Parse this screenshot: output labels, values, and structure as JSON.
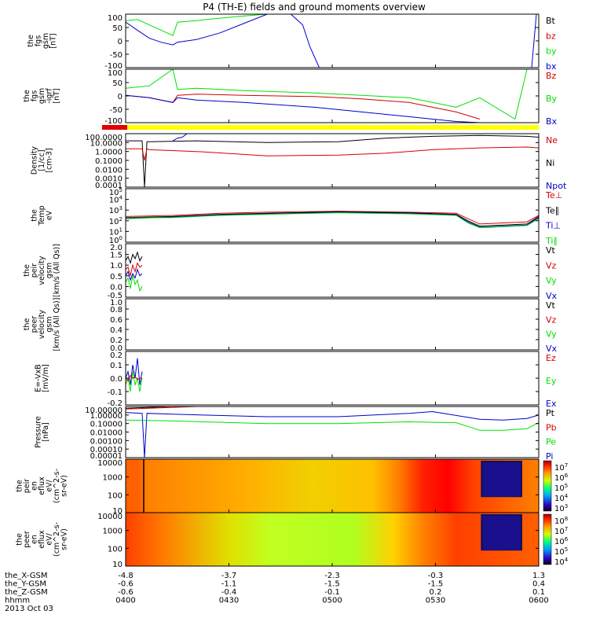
{
  "title": "P4 (TH-E) fields and ground moments overview",
  "colors": {
    "black": "#000000",
    "red": "#d40000",
    "green": "#00e000",
    "blue": "#0000c8",
    "bar_red": "#e00000",
    "bar_yellow": "#ffff00"
  },
  "chart_data": [
    {
      "type": "line",
      "id": "fgs",
      "ylabel": [
        "the",
        "fgs",
        "gsm",
        "[nT]"
      ],
      "yticks": [
        "100",
        "50",
        "0",
        "-50",
        "-100"
      ],
      "ylim": [
        -100,
        100
      ],
      "legend": [
        {
          "label": "Bt",
          "color": "black"
        },
        {
          "label": "bz",
          "color": "red"
        },
        {
          "label": "by",
          "color": "green"
        },
        {
          "label": "bx",
          "color": "blue"
        }
      ],
      "series": [
        {
          "name": "by",
          "color": "green",
          "x": [
            0,
            5,
            10,
            15,
            20,
            22,
            25,
            30,
            40,
            50,
            60,
            70,
            75
          ],
          "y": [
            75,
            80,
            60,
            40,
            20,
            70,
            72,
            76,
            85,
            93,
            100,
            100,
            100
          ]
        },
        {
          "name": "bx",
          "color": "blue",
          "x": [
            0,
            5,
            10,
            15,
            20,
            22,
            30,
            40,
            50,
            60,
            65,
            70,
            75,
            78,
            82,
            88
          ],
          "y": [
            70,
            40,
            10,
            -5,
            -15,
            -5,
            5,
            30,
            65,
            100,
            100,
            100,
            60,
            -20,
            -100,
            -100
          ]
        },
        {
          "name": "bx",
          "color": "blue",
          "x": [
            172,
            174
          ],
          "y": [
            -100,
            100
          ]
        }
      ]
    },
    {
      "type": "line",
      "id": "fgs-sm",
      "ylabel": [
        "the",
        "fgs",
        "gsm",
        "-igrf",
        "[nT]"
      ],
      "yticks": [
        "100",
        "50",
        "0",
        "-50",
        "-100"
      ],
      "ylim": [
        -125,
        100
      ],
      "legend": [
        {
          "label": "Bz",
          "color": "red"
        },
        {
          "label": "By",
          "color": "green"
        },
        {
          "label": "Bx",
          "color": "blue"
        }
      ],
      "series": [
        {
          "name": "By",
          "color": "green",
          "x": [
            0,
            10,
            20,
            22,
            30,
            50,
            80,
            100,
            120,
            130,
            140,
            150,
            160,
            165,
            170,
            175
          ],
          "y": [
            20,
            30,
            100,
            15,
            20,
            10,
            0,
            -10,
            -20,
            -40,
            -60,
            -20,
            -80,
            -110,
            100,
            120
          ]
        },
        {
          "name": "Bz",
          "color": "red",
          "x": [
            0,
            10,
            20,
            22,
            30,
            50,
            80,
            100,
            120,
            130,
            140,
            150
          ],
          "y": [
            -10,
            -20,
            -40,
            -10,
            -5,
            -10,
            -15,
            -25,
            -40,
            -60,
            -80,
            -110
          ]
        },
        {
          "name": "Bx",
          "color": "blue",
          "x": [
            0,
            10,
            20,
            22,
            30,
            50,
            80,
            100,
            120,
            130,
            140,
            150,
            155
          ],
          "y": [
            -10,
            -20,
            -40,
            -20,
            -30,
            -40,
            -60,
            -80,
            -100,
            -110,
            -120,
            -125,
            -125
          ]
        }
      ]
    },
    {
      "type": "line",
      "id": "density",
      "ylabel": [
        "Density",
        "[1/cc]",
        "[cm-3]"
      ],
      "yticks": [
        "100.0000",
        "10.0000",
        "1.0000",
        "0.1000",
        "0.0100",
        "0.0010",
        "0.0001"
      ],
      "ylim": [
        -4,
        2
      ],
      "ylog": true,
      "legend": [
        {
          "label": "Ne",
          "color": "red"
        },
        {
          "label": "Ni",
          "color": "black"
        },
        {
          "label": "Npot",
          "color": "blue"
        }
      ],
      "series": [
        {
          "name": "Ni",
          "color": "black",
          "x": [
            0,
            7,
            8,
            9,
            10,
            30,
            60,
            90,
            110,
            130,
            150,
            170,
            175
          ],
          "y": [
            1.2,
            1.2,
            -4,
            1.1,
            1.1,
            1.2,
            1.0,
            1.1,
            1.5,
            1.7,
            1.8,
            1.7,
            1.6
          ]
        },
        {
          "name": "Ne",
          "color": "red",
          "x": [
            0,
            7,
            8,
            9,
            10,
            30,
            60,
            90,
            110,
            130,
            150,
            170,
            175
          ],
          "y": [
            0.3,
            0.3,
            -1,
            0.3,
            0.2,
            0,
            -0.5,
            -0.4,
            -0.2,
            0.2,
            0.4,
            0.5,
            0.4
          ]
        },
        {
          "name": "Npot",
          "color": "blue",
          "x": [
            20,
            22,
            24,
            26,
            30,
            34
          ],
          "y": [
            1.2,
            1.5,
            1.6,
            2,
            2,
            2
          ]
        }
      ]
    },
    {
      "type": "line",
      "id": "temperature",
      "ylabel": [
        "the",
        "Temp",
        "eV"
      ],
      "yticks": [
        "10^5",
        "10^4",
        "10^3",
        "10^2",
        "10^1",
        "10^0"
      ],
      "ylim": [
        0,
        5
      ],
      "ylog": true,
      "legend": [
        {
          "label": "Te⊥",
          "color": "red"
        },
        {
          "label": "Te∥",
          "color": "black"
        },
        {
          "label": "Ti⊥",
          "color": "blue"
        },
        {
          "label": "Ti∥",
          "color": "green"
        }
      ],
      "series": [
        {
          "name": "Te⊥",
          "color": "red",
          "x": [
            0,
            20,
            40,
            60,
            90,
            120,
            140,
            145,
            150,
            160,
            170,
            175
          ],
          "y": [
            2.4,
            2.5,
            2.7,
            2.8,
            2.9,
            2.8,
            2.7,
            2.2,
            1.7,
            1.8,
            1.9,
            2.5
          ]
        },
        {
          "name": "Te∥",
          "color": "black",
          "x": [
            0,
            20,
            40,
            60,
            90,
            120,
            140,
            145,
            150,
            160,
            170,
            175
          ],
          "y": [
            2.3,
            2.4,
            2.6,
            2.7,
            2.85,
            2.75,
            2.6,
            2.0,
            1.5,
            1.6,
            1.7,
            2.4
          ]
        },
        {
          "name": "Ti⊥",
          "color": "blue",
          "x": [
            0,
            20,
            40,
            60,
            90,
            120,
            140,
            145,
            150,
            160,
            170,
            175
          ],
          "y": [
            2.2,
            2.35,
            2.55,
            2.65,
            2.8,
            2.7,
            2.55,
            1.9,
            1.4,
            1.5,
            1.6,
            2.3
          ]
        },
        {
          "name": "Ti∥",
          "color": "green",
          "x": [
            0,
            20,
            40,
            60,
            90,
            120,
            140,
            145,
            150,
            160,
            170,
            175
          ],
          "y": [
            2.25,
            2.3,
            2.5,
            2.6,
            2.75,
            2.65,
            2.5,
            1.8,
            1.35,
            1.45,
            1.55,
            2.2
          ]
        }
      ]
    },
    {
      "type": "line",
      "id": "peir-velocity",
      "ylabel": [
        "the",
        "peir",
        "velocity",
        "gsm",
        "[km/s (All Qs)]"
      ],
      "yticks": [
        "2.0",
        "1.5",
        "1.0",
        "0.5",
        "0.0",
        "-0.5"
      ],
      "ylim": [
        -0.5,
        2
      ],
      "legend": [
        {
          "label": "Vt",
          "color": "black"
        },
        {
          "label": "Vz",
          "color": "red"
        },
        {
          "label": "Vy",
          "color": "green"
        },
        {
          "label": "Vx",
          "color": "blue"
        }
      ],
      "series": [
        {
          "name": "Vt",
          "color": "black",
          "x": [
            0,
            1,
            2,
            3,
            4,
            5,
            6,
            7
          ],
          "y": [
            1.2,
            1.4,
            1.1,
            1.5,
            1.3,
            1.6,
            1.2,
            1.4
          ]
        },
        {
          "name": "Vz",
          "color": "red",
          "x": [
            0,
            1,
            2,
            3,
            4,
            5,
            6,
            7
          ],
          "y": [
            0.8,
            0.9,
            0.5,
            1.0,
            0.7,
            1.1,
            0.9,
            1.0
          ]
        },
        {
          "name": "Vy",
          "color": "green",
          "x": [
            0,
            1,
            2,
            3,
            4,
            5,
            6,
            7
          ],
          "y": [
            0.2,
            0.4,
            -0.1,
            0.5,
            0.1,
            0.3,
            -0.2,
            0.0
          ]
        },
        {
          "name": "Vx",
          "color": "blue",
          "x": [
            0,
            1,
            2,
            3,
            4,
            5,
            6,
            7
          ],
          "y": [
            0.5,
            0.7,
            0.3,
            0.6,
            0.4,
            0.8,
            0.5,
            0.6
          ]
        }
      ]
    },
    {
      "type": "line",
      "id": "peer-velocity",
      "ylabel": [
        "the",
        "peer",
        "velocity",
        "gsm",
        "[km/s (All Qs)]"
      ],
      "yticks": [
        "1.0",
        "0.8",
        "0.6",
        "0.4",
        "0.2",
        "0.0"
      ],
      "ylim": [
        0,
        1
      ],
      "legend": [
        {
          "label": "Vt",
          "color": "black"
        },
        {
          "label": "Vz",
          "color": "red"
        },
        {
          "label": "Vy",
          "color": "green"
        },
        {
          "label": "Vx",
          "color": "blue"
        }
      ],
      "series": []
    },
    {
      "type": "line",
      "id": "efield",
      "ylabel": [
        "E=-VxB",
        "[mV/m]"
      ],
      "yticks": [
        "0.2",
        "0.1",
        "0.0",
        "-0.1",
        "-0.2"
      ],
      "ylim": [
        -0.2,
        0.2
      ],
      "legend": [
        {
          "label": "Ez",
          "color": "red"
        },
        {
          "label": "Ey",
          "color": "green"
        },
        {
          "label": "Ex",
          "color": "blue"
        }
      ],
      "series": [
        {
          "name": "Ex",
          "color": "blue",
          "x": [
            0,
            1,
            2,
            3,
            4,
            5,
            6,
            7
          ],
          "y": [
            0.0,
            0.05,
            -0.05,
            0.1,
            0.0,
            0.15,
            -0.05,
            0.05
          ]
        },
        {
          "name": "Ey",
          "color": "green",
          "x": [
            0,
            1,
            2,
            3,
            4,
            5,
            6,
            7
          ],
          "y": [
            -0.05,
            0.0,
            -0.1,
            0.05,
            -0.05,
            0.0,
            -0.1,
            0.0
          ]
        },
        {
          "name": "Ez",
          "color": "red",
          "x": [
            0,
            1,
            2,
            3,
            4,
            5,
            6,
            7
          ],
          "y": [
            0.0,
            -0.02,
            0.02,
            0.0,
            0.01,
            -0.01,
            0.0,
            0.0
          ]
        }
      ]
    },
    {
      "type": "line",
      "id": "pressure",
      "ylabel": [
        "Pressure",
        "[nPa]"
      ],
      "yticks": [
        "10.00000",
        "1.00000",
        "0.10000",
        "0.01000",
        "0.00100",
        "0.00010",
        "0.00001"
      ],
      "ylim": [
        -5,
        1
      ],
      "ylog": true,
      "legend": [
        {
          "label": "Pt",
          "color": "black"
        },
        {
          "label": "Pb",
          "color": "red"
        },
        {
          "label": "Pe",
          "color": "green"
        },
        {
          "label": "Pi",
          "color": "blue"
        }
      ],
      "series": [
        {
          "name": "Pt",
          "color": "black",
          "x": [
            0,
            10,
            20,
            30,
            40
          ],
          "y": [
            0.8,
            0.9,
            1.0,
            1.1,
            1.2
          ]
        },
        {
          "name": "Pb",
          "color": "red",
          "x": [
            0,
            10,
            20,
            30
          ],
          "y": [
            0.7,
            0.8,
            0.9,
            1.0
          ]
        },
        {
          "name": "Pi",
          "color": "blue",
          "x": [
            0,
            7,
            8,
            9,
            20,
            60,
            90,
            120,
            130,
            150,
            160,
            170,
            175
          ],
          "y": [
            0.3,
            0.2,
            -5,
            0.2,
            0.1,
            -0.2,
            -0.2,
            0.2,
            0.4,
            -0.5,
            -0.6,
            -0.4,
            0.0
          ]
        },
        {
          "name": "Pe",
          "color": "green",
          "x": [
            0,
            20,
            60,
            90,
            120,
            140,
            150,
            160,
            170,
            175
          ],
          "y": [
            -0.6,
            -0.7,
            -1.0,
            -1.0,
            -0.8,
            -0.9,
            -1.8,
            -1.8,
            -1.6,
            -0.9
          ]
        }
      ]
    },
    {
      "type": "heatmap",
      "id": "peir-spec",
      "ylabel": [
        "the",
        "peir",
        "en",
        "eflux",
        "eV/",
        "(cm^2-s-",
        "sr-eV)"
      ],
      "yticks": [
        "10000",
        "1000",
        "100",
        "10"
      ],
      "cbar_ticks": [
        "10^7",
        "10^6",
        "10^5",
        "10^4",
        "10^3"
      ]
    },
    {
      "type": "heatmap",
      "id": "peer-spec",
      "ylabel": [
        "the",
        "peer",
        "en",
        "eflux",
        "eV/",
        "(cm^2-s-",
        "sr-eV)"
      ],
      "yticks": [
        "10000",
        "1000",
        "100",
        "10"
      ],
      "cbar_ticks": [
        "10^8",
        "10^7",
        "10^6",
        "10^5",
        "10^4"
      ]
    }
  ],
  "xaxis": {
    "row_labels": [
      "the_X-GSM",
      "the_Y-GSM",
      "the_Z-GSM",
      "hhmm",
      "2013 Oct 03"
    ],
    "columns": [
      {
        "x": "-4.8",
        "y": "-0.6",
        "z": "-0.6",
        "t": "0400"
      },
      {
        "x": "-3.7",
        "y": "-1.1",
        "z": "-0.4",
        "t": "0430"
      },
      {
        "x": "-2.3",
        "y": "-1.5",
        "z": "-0.1",
        "t": "0500"
      },
      {
        "x": "-0.3",
        "y": "-1.5",
        "z": "0.2",
        "t": "0530"
      },
      {
        "x": "1.3",
        "y": "0.4",
        "z": "0.1",
        "t": "0600"
      }
    ]
  }
}
